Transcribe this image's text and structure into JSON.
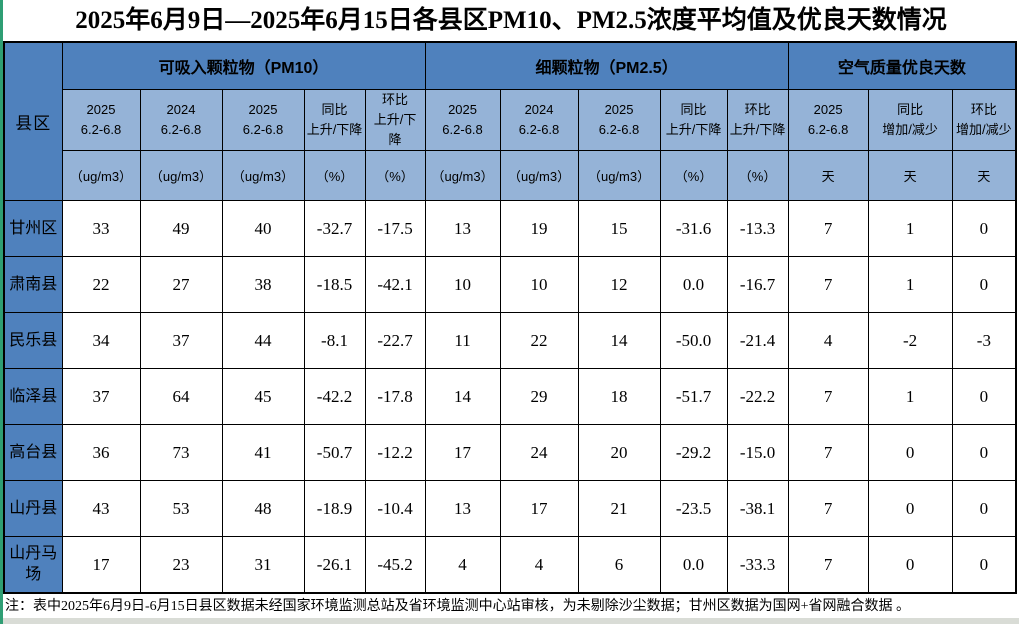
{
  "title": "2025年6月9日—2025年6月15日各县区PM10、PM2.5浓度平均值及优良天数情况",
  "colors": {
    "header_dark_blue": "#4f81bd",
    "header_light_blue": "#95b3d7",
    "left_edge_green": "#2f9e74",
    "bottom_strip_gray": "#d9dcd6",
    "grid_border": "#000000",
    "cell_background": "#ffffff"
  },
  "table": {
    "corner_label": "县区",
    "groups": [
      {
        "label": "可吸入颗粒物（PM10）",
        "span": 5
      },
      {
        "label": "细颗粒物（PM2.5）",
        "span": 5
      },
      {
        "label": "空气质量优良天数",
        "span": 3
      }
    ],
    "columns": [
      {
        "line1": "2025",
        "line2": "6.2-6.8",
        "unit": "（ug/m3）"
      },
      {
        "line1": "2024",
        "line2": "6.2-6.8",
        "unit": "（ug/m3）"
      },
      {
        "line1": "2025",
        "line2": "6.2-6.8",
        "unit": "（ug/m3）"
      },
      {
        "line1": "同比",
        "line2": "上升/下降",
        "unit": "（%）"
      },
      {
        "line1": "环比",
        "line2": "上升/下降",
        "unit": "（%）"
      },
      {
        "line1": "2025",
        "line2": "6.2-6.8",
        "unit": "（ug/m3）"
      },
      {
        "line1": "2024",
        "line2": "6.2-6.8",
        "unit": "（ug/m3）"
      },
      {
        "line1": "2025",
        "line2": "6.2-6.8",
        "unit": "（ug/m3）"
      },
      {
        "line1": "同比",
        "line2": "上升/下降",
        "unit": "（%）"
      },
      {
        "line1": "环比",
        "line2": "上升/下降",
        "unit": "（%）"
      },
      {
        "line1": "2025",
        "line2": "6.2-6.8",
        "unit": "天"
      },
      {
        "line1": "同比",
        "line2": "增加/减少",
        "unit": "天"
      },
      {
        "line1": "环比",
        "line2": "增加/减少",
        "unit": "天"
      }
    ],
    "group_start_columns": [
      0,
      5,
      10
    ],
    "rows": [
      {
        "label": "甘州区",
        "values": [
          "33",
          "49",
          "40",
          "-32.7",
          "-17.5",
          "13",
          "19",
          "15",
          "-31.6",
          "-13.3",
          "7",
          "1",
          "0"
        ]
      },
      {
        "label": "肃南县",
        "values": [
          "22",
          "27",
          "38",
          "-18.5",
          "-42.1",
          "10",
          "10",
          "12",
          "0.0",
          "-16.7",
          "7",
          "1",
          "0"
        ]
      },
      {
        "label": "民乐县",
        "values": [
          "34",
          "37",
          "44",
          "-8.1",
          "-22.7",
          "11",
          "22",
          "14",
          "-50.0",
          "-21.4",
          "4",
          "-2",
          "-3"
        ]
      },
      {
        "label": "临泽县",
        "values": [
          "37",
          "64",
          "45",
          "-42.2",
          "-17.8",
          "14",
          "29",
          "18",
          "-51.7",
          "-22.2",
          "7",
          "1",
          "0"
        ]
      },
      {
        "label": "高台县",
        "values": [
          "36",
          "73",
          "41",
          "-50.7",
          "-12.2",
          "17",
          "24",
          "20",
          "-29.2",
          "-15.0",
          "7",
          "0",
          "0"
        ]
      },
      {
        "label": "山丹县",
        "values": [
          "43",
          "53",
          "48",
          "-18.9",
          "-10.4",
          "13",
          "17",
          "21",
          "-23.5",
          "-38.1",
          "7",
          "0",
          "0"
        ]
      },
      {
        "label": "山丹马场",
        "values": [
          "17",
          "23",
          "31",
          "-26.1",
          "-45.2",
          "4",
          "4",
          "6",
          "0.0",
          "-33.3",
          "7",
          "0",
          "0"
        ]
      }
    ]
  },
  "note": "注：表中2025年6月9日-6月15日县区数据未经国家环境监测总站及省环境监测中心站审核，为未剔除沙尘数据；甘州区数据为国网+省网融合数据 。"
}
